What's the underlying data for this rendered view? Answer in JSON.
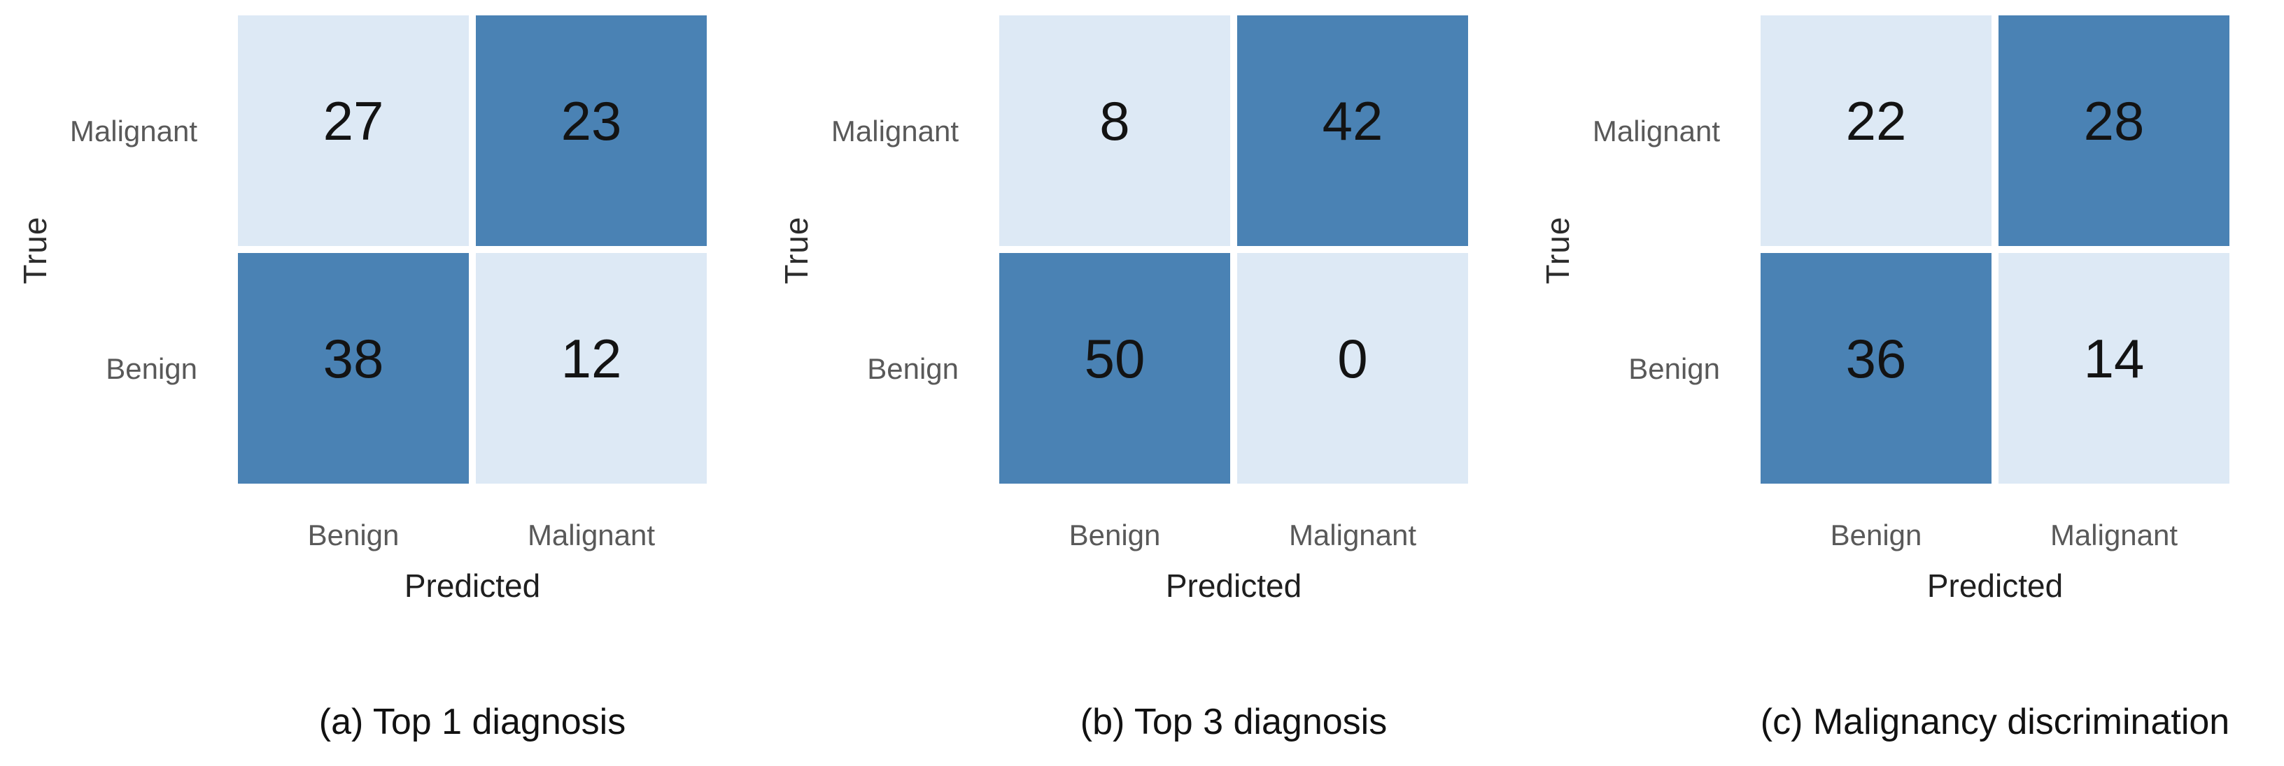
{
  "colors": {
    "dark_cell": "#4a82b4",
    "light_cell": "#dde9f5",
    "gap": "#ffffff",
    "tick_label": "#595959",
    "axis_label": "#1f1f1f",
    "number": "#131313",
    "caption": "#111111",
    "background": "#ffffff"
  },
  "chart_data": [
    {
      "type": "heatmap",
      "title": "(a) Top 1 diagnosis",
      "xlabel": "Predicted",
      "ylabel": "True",
      "x_categories": [
        "Benign",
        "Malignant"
      ],
      "y_categories": [
        "Malignant",
        "Benign"
      ],
      "values": [
        [
          27,
          23
        ],
        [
          38,
          12
        ]
      ],
      "cell_shades": [
        [
          "light",
          "dark"
        ],
        [
          "dark",
          "light"
        ]
      ],
      "legend": "none",
      "grid": "off"
    },
    {
      "type": "heatmap",
      "title": "(b) Top 3 diagnosis",
      "xlabel": "Predicted",
      "ylabel": "True",
      "x_categories": [
        "Benign",
        "Malignant"
      ],
      "y_categories": [
        "Malignant",
        "Benign"
      ],
      "values": [
        [
          8,
          42
        ],
        [
          50,
          0
        ]
      ],
      "cell_shades": [
        [
          "light",
          "dark"
        ],
        [
          "dark",
          "light"
        ]
      ],
      "legend": "none",
      "grid": "off"
    },
    {
      "type": "heatmap",
      "title": "(c) Malignancy discrimination",
      "xlabel": "Predicted",
      "ylabel": "True",
      "x_categories": [
        "Benign",
        "Malignant"
      ],
      "y_categories": [
        "Malignant",
        "Benign"
      ],
      "values": [
        [
          22,
          28
        ],
        [
          36,
          14
        ]
      ],
      "cell_shades": [
        [
          "light",
          "dark"
        ],
        [
          "dark",
          "light"
        ]
      ],
      "legend": "none",
      "grid": "off"
    }
  ]
}
